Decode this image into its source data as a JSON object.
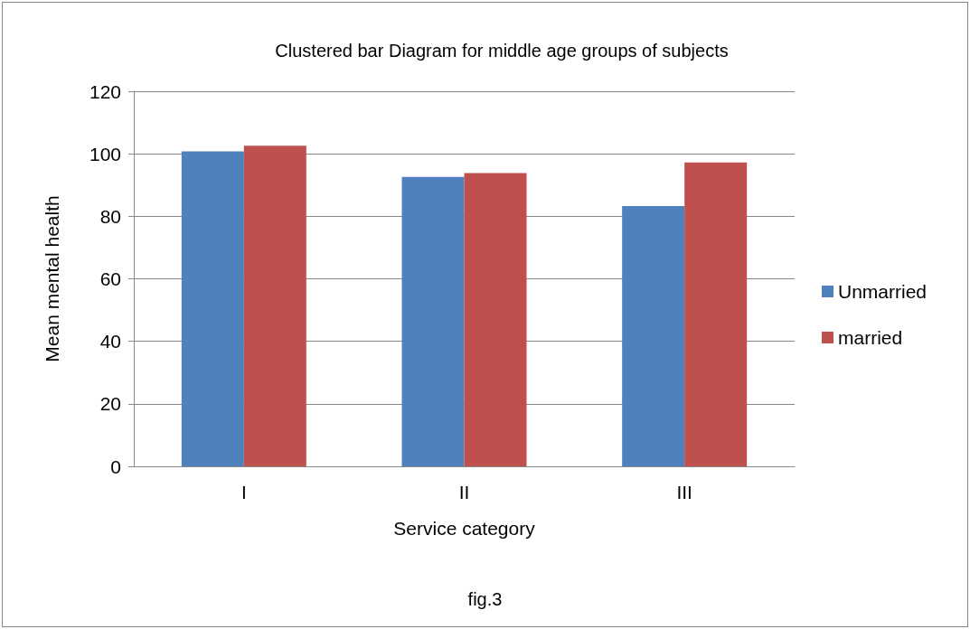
{
  "chart_data": {
    "type": "bar",
    "title": "Clustered bar Diagram for middle age groups of subjects",
    "xlabel": "Service category",
    "ylabel": "Mean mental health",
    "categories": [
      "I",
      "II",
      "III"
    ],
    "series": [
      {
        "name": "Unmarried",
        "color": "#4f81bd",
        "values": [
          100.8,
          92.6,
          83.3
        ]
      },
      {
        "name": "married",
        "color": "#c0504d",
        "values": [
          102.6,
          93.8,
          97.2
        ]
      }
    ],
    "ylim": [
      0,
      120
    ],
    "yticks": [
      0,
      20,
      40,
      60,
      80,
      100,
      120
    ],
    "grid": "y",
    "legend": "right",
    "annotations": [
      "fig.3"
    ]
  }
}
